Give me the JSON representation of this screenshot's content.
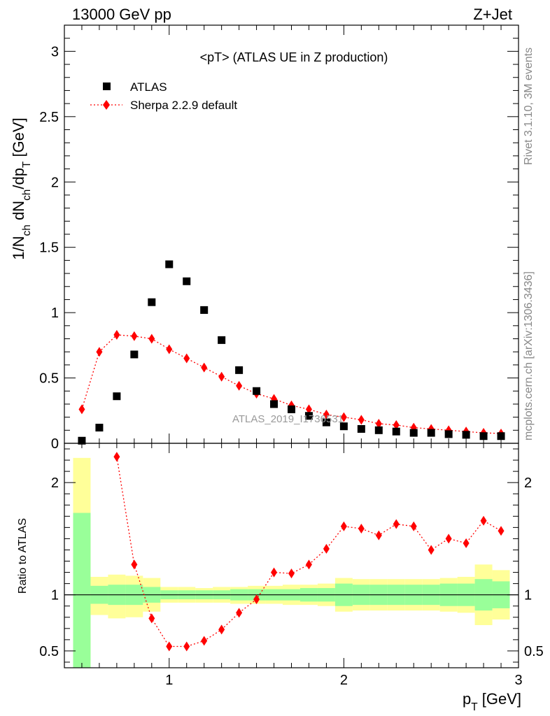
{
  "header": {
    "left": "13000 GeV pp",
    "right": "Z+Jet"
  },
  "side_text": {
    "rivet": "Rivet 3.1.10,  3M events",
    "mcplots": "mcplots.cern.ch [arXiv:1306.3436]"
  },
  "watermark": "ATLAS_2019_I1736531",
  "chart_data": [
    {
      "type": "scatter",
      "panel": "main",
      "title": "<pT> (ATLAS UE in Z production)",
      "ylabel": "1/N_ch dN_ch/dp_T [GeV]",
      "xlim": [
        0.4,
        3.0
      ],
      "ylim": [
        0,
        3.2
      ],
      "xticks": [
        1,
        2,
        3
      ],
      "yticks": [
        0,
        0.5,
        1,
        1.5,
        2,
        2.5,
        3
      ],
      "ytick_labels": [
        "0",
        "0.5",
        "1",
        "1.5",
        "2",
        "2.5",
        "3"
      ],
      "legend_position": "top-left",
      "series": [
        {
          "name": "ATLAS",
          "marker": "square",
          "color": "#000000",
          "x": [
            0.5,
            0.6,
            0.7,
            0.8,
            0.9,
            1.0,
            1.1,
            1.2,
            1.3,
            1.4,
            1.5,
            1.6,
            1.7,
            1.8,
            1.9,
            2.0,
            2.1,
            2.2,
            2.3,
            2.4,
            2.5,
            2.6,
            2.7,
            2.8,
            2.9
          ],
          "y": [
            0.02,
            0.12,
            0.36,
            0.68,
            1.08,
            1.37,
            1.24,
            1.02,
            0.79,
            0.56,
            0.4,
            0.3,
            0.26,
            0.21,
            0.16,
            0.13,
            0.11,
            0.1,
            0.09,
            0.08,
            0.08,
            0.07,
            0.065,
            0.055,
            0.055
          ]
        },
        {
          "name": "Sherpa 2.2.9 default",
          "marker": "diamond",
          "line": "dotted",
          "color": "#ff0000",
          "x": [
            0.5,
            0.6,
            0.7,
            0.8,
            0.9,
            1.0,
            1.1,
            1.2,
            1.3,
            1.4,
            1.5,
            1.6,
            1.7,
            1.8,
            1.9,
            2.0,
            2.1,
            2.2,
            2.3,
            2.4,
            2.5,
            2.6,
            2.7,
            2.8,
            2.9
          ],
          "y": [
            0.26,
            0.7,
            0.83,
            0.82,
            0.8,
            0.72,
            0.65,
            0.58,
            0.51,
            0.44,
            0.38,
            0.34,
            0.29,
            0.26,
            0.22,
            0.2,
            0.18,
            0.15,
            0.14,
            0.12,
            0.11,
            0.1,
            0.09,
            0.08,
            0.075
          ]
        }
      ]
    },
    {
      "type": "scatter",
      "panel": "ratio",
      "xlabel": "p_T [GeV]",
      "ylabel": "Ratio to ATLAS",
      "xlim": [
        0.4,
        3.0
      ],
      "ylim": [
        0.35,
        2.35
      ],
      "xticks": [
        1,
        2,
        3
      ],
      "yticks": [
        0.5,
        1,
        2
      ],
      "ytick_labels": [
        "0.5",
        "1",
        "2"
      ],
      "reference_line": 1,
      "bands": {
        "x_edges": [
          0.45,
          0.55,
          0.65,
          0.75,
          0.85,
          0.95,
          1.05,
          1.15,
          1.25,
          1.35,
          1.45,
          1.55,
          1.65,
          1.75,
          1.85,
          1.95,
          2.05,
          2.15,
          2.25,
          2.35,
          2.45,
          2.55,
          2.65,
          2.75,
          2.85,
          2.95
        ],
        "total": {
          "color": "#ffff99",
          "lo": [
            0.35,
            0.82,
            0.79,
            0.8,
            0.85,
            0.93,
            0.93,
            0.93,
            0.93,
            0.92,
            0.92,
            0.92,
            0.91,
            0.91,
            0.9,
            0.85,
            0.86,
            0.86,
            0.86,
            0.86,
            0.86,
            0.85,
            0.84,
            0.73,
            0.78
          ],
          "hi": [
            2.22,
            1.16,
            1.18,
            1.17,
            1.15,
            1.07,
            1.07,
            1.06,
            1.07,
            1.07,
            1.08,
            1.08,
            1.09,
            1.09,
            1.1,
            1.15,
            1.14,
            1.14,
            1.14,
            1.14,
            1.14,
            1.15,
            1.16,
            1.27,
            1.22
          ]
        },
        "stat": {
          "color": "#99ff99",
          "lo": [
            0.35,
            0.92,
            0.91,
            0.91,
            0.93,
            0.96,
            0.96,
            0.96,
            0.96,
            0.95,
            0.95,
            0.95,
            0.95,
            0.94,
            0.94,
            0.9,
            0.91,
            0.91,
            0.91,
            0.91,
            0.91,
            0.9,
            0.9,
            0.86,
            0.88
          ],
          "hi": [
            1.73,
            1.08,
            1.09,
            1.09,
            1.07,
            1.04,
            1.04,
            1.04,
            1.04,
            1.05,
            1.05,
            1.05,
            1.05,
            1.06,
            1.06,
            1.1,
            1.09,
            1.09,
            1.09,
            1.09,
            1.09,
            1.1,
            1.1,
            1.14,
            1.12
          ]
        }
      },
      "series": [
        {
          "name": "Sherpa 2.2.9 default",
          "marker": "diamond",
          "line": "dotted",
          "color": "#ff0000",
          "x": [
            0.7,
            0.8,
            0.9,
            1.0,
            1.1,
            1.2,
            1.3,
            1.4,
            1.5,
            1.6,
            1.7,
            1.8,
            1.9,
            2.0,
            2.1,
            2.2,
            2.3,
            2.4,
            2.5,
            2.6,
            2.7,
            2.8,
            2.9
          ],
          "y": [
            2.23,
            1.27,
            0.79,
            0.54,
            0.54,
            0.59,
            0.69,
            0.84,
            0.96,
            1.2,
            1.19,
            1.27,
            1.41,
            1.61,
            1.59,
            1.53,
            1.63,
            1.61,
            1.4,
            1.5,
            1.46,
            1.66,
            1.57
          ]
        }
      ]
    }
  ]
}
